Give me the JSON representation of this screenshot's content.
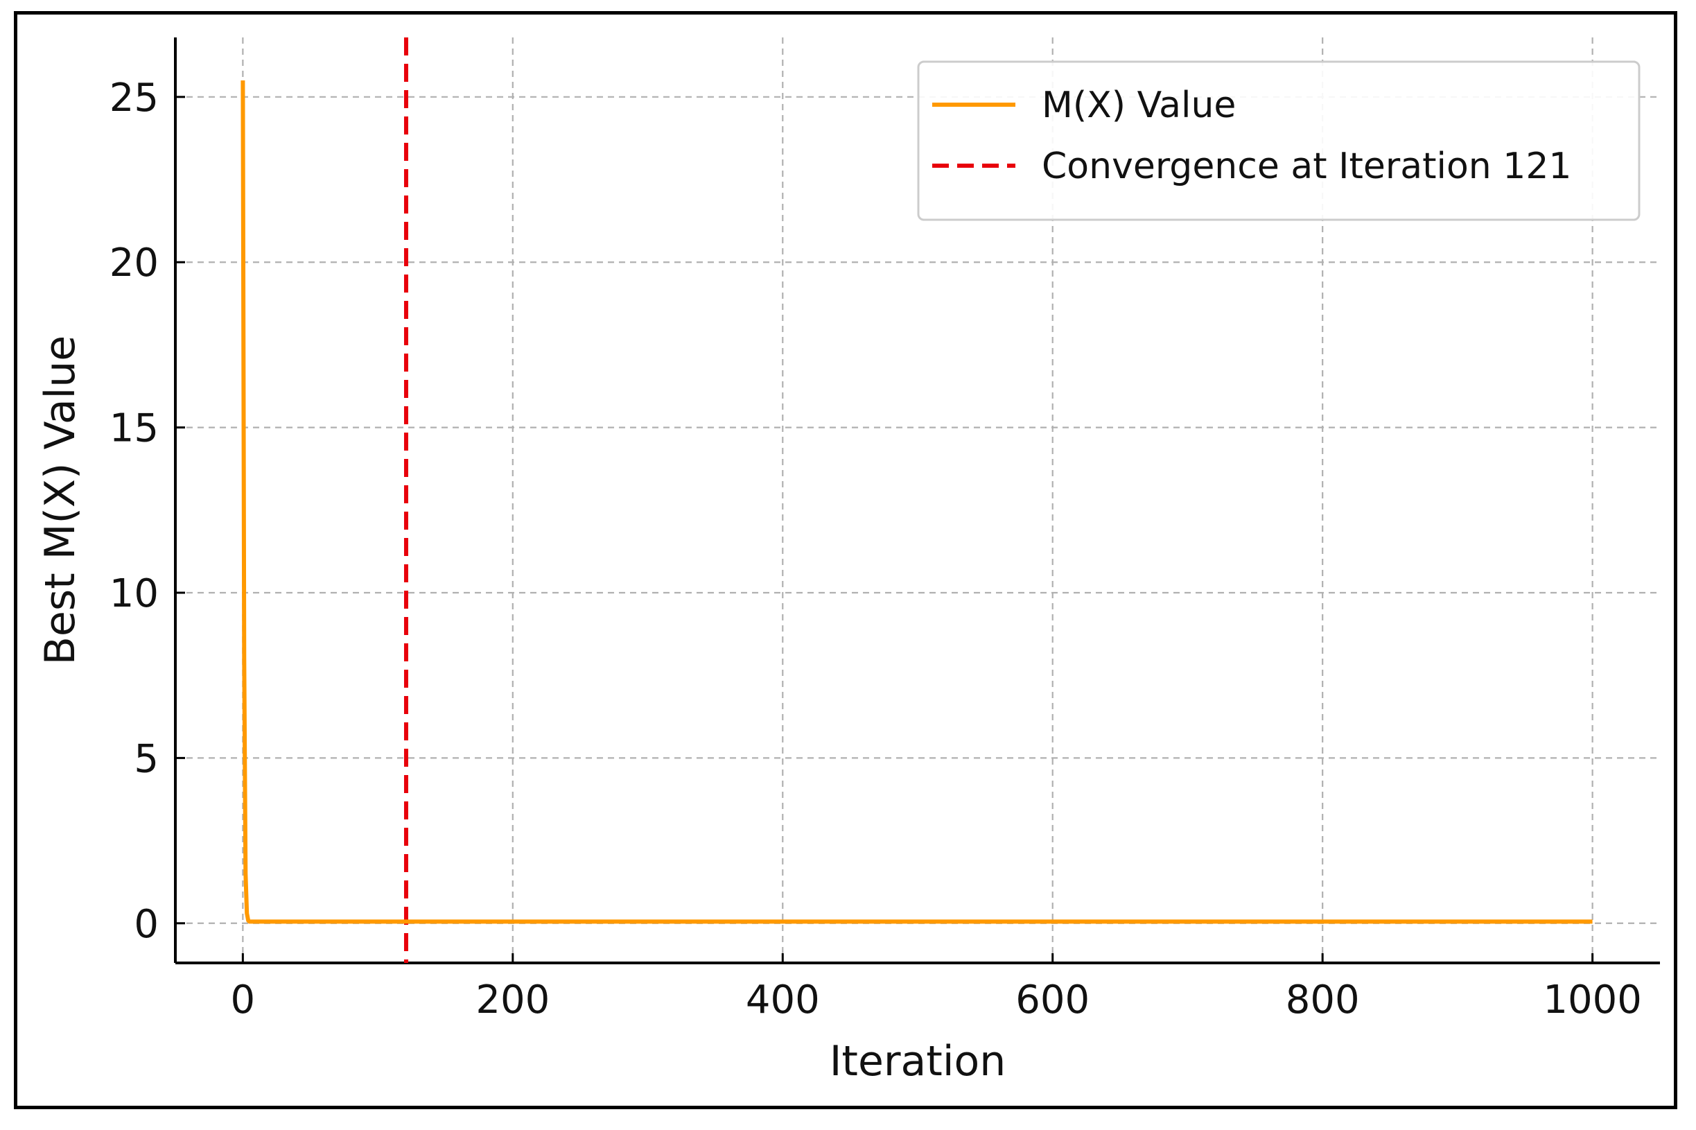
{
  "chart_data": {
    "type": "line",
    "title": "",
    "xlabel": "Iteration",
    "ylabel": "Best M(X) Value",
    "xlim": [
      -50,
      1050
    ],
    "ylim": [
      -1.2,
      26.8
    ],
    "xticks": [
      0,
      200,
      400,
      600,
      800,
      1000
    ],
    "yticks": [
      0,
      5,
      10,
      15,
      20,
      25
    ],
    "grid": true,
    "legend_position": "top-right",
    "series": [
      {
        "name": "M(X) Value",
        "color": "#ff9900",
        "style": "solid",
        "x": [
          0,
          1,
          2,
          3,
          4,
          5,
          10,
          50,
          121,
          200,
          400,
          600,
          800,
          1000
        ],
        "y": [
          25.5,
          8.0,
          1.5,
          0.3,
          0.08,
          0.05,
          0.05,
          0.05,
          0.05,
          0.05,
          0.05,
          0.05,
          0.05,
          0.05
        ]
      }
    ],
    "vlines": [
      {
        "name": "Convergence at Iteration 121",
        "x": 121,
        "color": "#e8000b",
        "style": "dashed"
      }
    ]
  }
}
